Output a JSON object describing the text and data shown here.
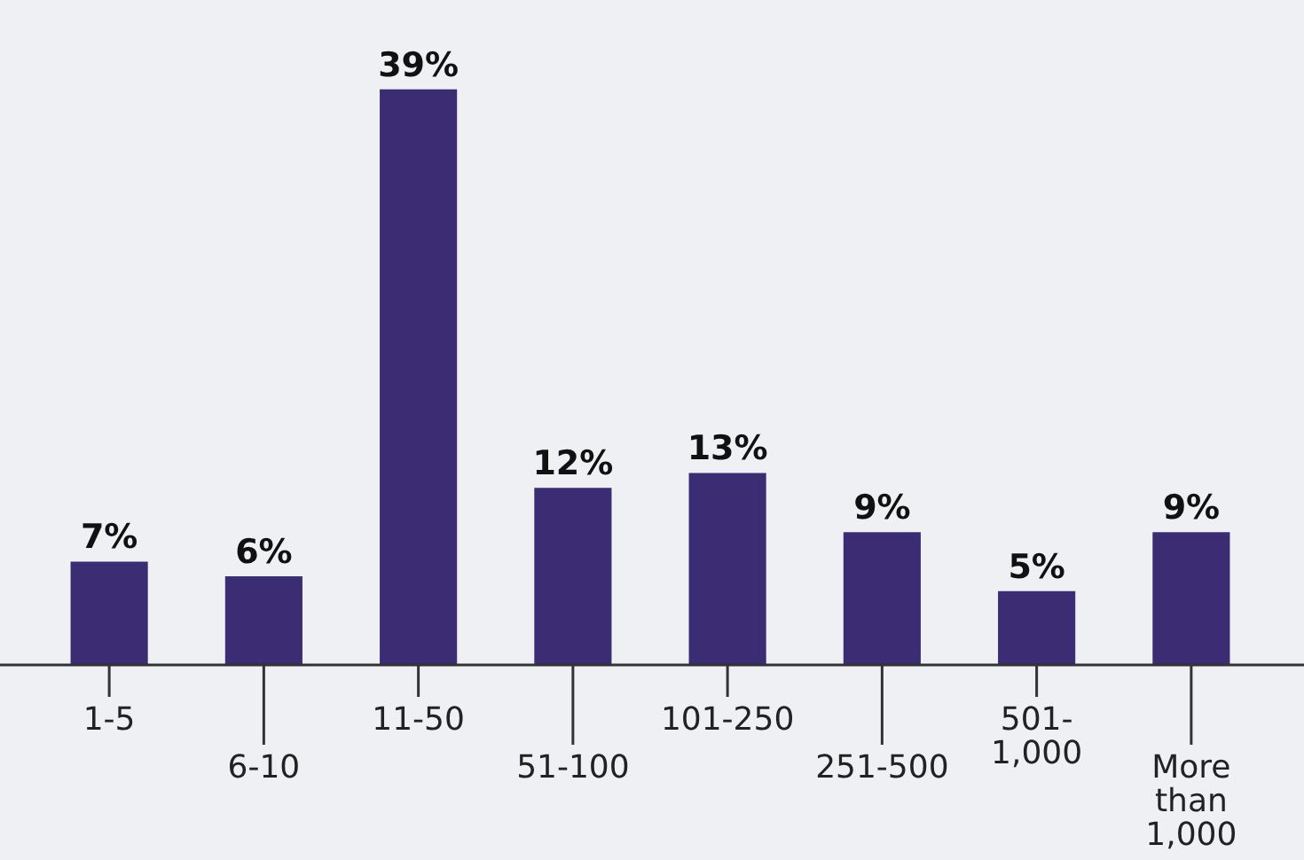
{
  "chart_data": {
    "type": "bar",
    "categories": [
      "1-5",
      "6-10",
      "11-50",
      "51-100",
      "101-250",
      "251-500",
      "501-1,000",
      "More than 1,000"
    ],
    "values": [
      7,
      6,
      39,
      12,
      13,
      9,
      5,
      9
    ],
    "color": "#3b2c74",
    "value_labels": [
      "7%",
      "6%",
      "39%",
      "12%",
      "13%",
      "9%",
      "5%",
      "9%"
    ],
    "grid": false,
    "legend": false
  }
}
